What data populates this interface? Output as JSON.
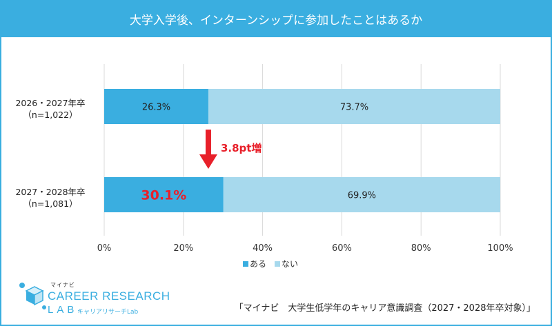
{
  "banner": {
    "title": "大学入学後、インターンシップに参加したことはあるか"
  },
  "chart_data": {
    "type": "bar",
    "stacked": true,
    "orientation": "horizontal",
    "categories": [
      {
        "line1": "2026・2027年卒",
        "line2": "（n=1,022）"
      },
      {
        "line1": "2027・2028年卒",
        "line2": "（n=1,081）"
      }
    ],
    "series": [
      {
        "name": "ある",
        "color": "#3aaee0",
        "values": [
          26.3,
          30.1
        ],
        "labels": [
          "26.3%",
          "30.1%"
        ]
      },
      {
        "name": "ない",
        "color": "#a7d9ed",
        "values": [
          73.7,
          69.9
        ],
        "labels": [
          "73.7%",
          "69.9%"
        ]
      }
    ],
    "xlim": [
      0,
      100
    ],
    "xticks": [
      "0%",
      "20%",
      "40%",
      "60%",
      "80%",
      "100%"
    ],
    "grid": true,
    "legend_position": "bottom",
    "highlight_color": "#e8202a",
    "annotation": {
      "text": "3.8pt増",
      "color": "#e8202a"
    }
  },
  "logo": {
    "small": "マイナビ",
    "main": "CAREER RESEARCH",
    "lab": "LAB",
    "sub": "キャリアリサーチLab",
    "color": "#3aaee0"
  },
  "source": "「マイナビ　大学生低学年のキャリア意識調査（2027・2028年卒対象）」"
}
